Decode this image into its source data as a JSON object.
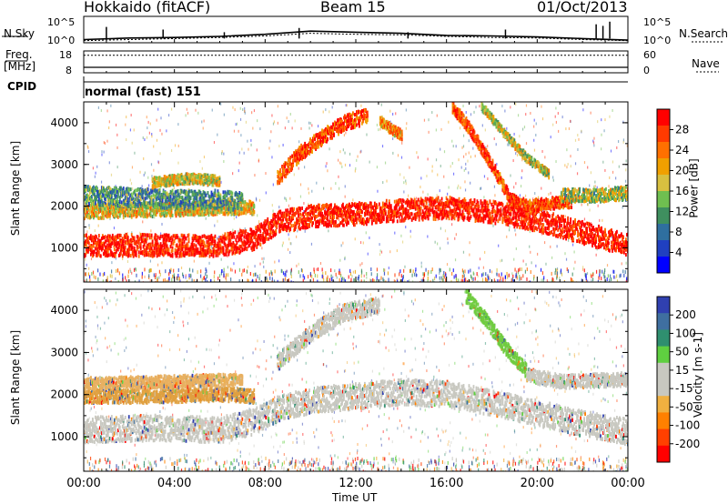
{
  "header": {
    "station": "Hokkaido (fitACF)",
    "beam": "Beam 15",
    "date": "01/Oct/2013"
  },
  "left_labels": {
    "nsky": "N.Sky",
    "freq": "Freq.",
    "freq_unit": "[MHz]",
    "cpid": "CPID"
  },
  "right_labels": {
    "nsearch": "N.Search",
    "nave": "Nave"
  },
  "cpid_text": "normal (fast) 151",
  "chart_data": [
    {
      "type": "line",
      "name": "noise-panel",
      "y_left_ticks": [
        "10^5",
        "10^0"
      ],
      "y_right_ticks": [
        "10^5",
        "10^0"
      ],
      "series_sky_log": [
        [
          0,
          0.6
        ],
        [
          2,
          0.9
        ],
        [
          4,
          1.0
        ],
        [
          6,
          1.2
        ],
        [
          8,
          1.6
        ],
        [
          10,
          2.2
        ],
        [
          12,
          2.0
        ],
        [
          14,
          1.8
        ],
        [
          16,
          1.4
        ],
        [
          18,
          1.3
        ],
        [
          20,
          1.1
        ],
        [
          22,
          0.8
        ],
        [
          24,
          0.5
        ]
      ],
      "series_search_log": [
        [
          0,
          0.4
        ],
        [
          2,
          0.6
        ],
        [
          4,
          0.8
        ],
        [
          6,
          1.0
        ],
        [
          8,
          1.3
        ],
        [
          10,
          1.8
        ],
        [
          12,
          1.6
        ],
        [
          14,
          1.5
        ],
        [
          16,
          1.2
        ],
        [
          18,
          1.0
        ],
        [
          20,
          0.9
        ],
        [
          22,
          0.6
        ],
        [
          24,
          0.4
        ]
      ]
    },
    {
      "type": "line",
      "name": "freq-nave-panel",
      "y_left_ticks": [
        "18",
        "8"
      ],
      "y_right_ticks": [
        "60",
        "0"
      ],
      "freq_mhz": 10.5,
      "nave": 48
    },
    {
      "type": "heatmap",
      "name": "power-panel",
      "ylabel": "Slant Range [km]",
      "yticks": [
        1000,
        2000,
        3000,
        4000
      ],
      "ylim": [
        180,
        4500
      ],
      "xlim": [
        0,
        24
      ],
      "colorbar": {
        "label": "Power [dB]",
        "ticks": [
          "28",
          "24",
          "20",
          "16",
          "12",
          "8",
          "4"
        ],
        "colors": [
          "#ff0000",
          "#ff3a00",
          "#ff7000",
          "#f0a000",
          "#d8c040",
          "#6fbf50",
          "#3f8f5f",
          "#2f6f9f",
          "#2040c0",
          "#0000ff"
        ]
      },
      "bands": [
        {
          "points": [
            [
              0,
              1100
            ],
            [
              3,
              1100
            ],
            [
              6,
              1100
            ],
            [
              7.5,
              1250
            ],
            [
              8.5,
              1650
            ],
            [
              10,
              1800
            ],
            [
              12,
              1850
            ],
            [
              14,
              1950
            ],
            [
              16,
              2000
            ],
            [
              18,
              1900
            ],
            [
              20,
              1700
            ],
            [
              22,
              1400
            ],
            [
              24,
              1100
            ]
          ],
          "width": 260,
          "level": 0.95
        },
        {
          "points": [
            [
              0,
              1900
            ],
            [
              3,
              1950
            ],
            [
              6,
              2000
            ],
            [
              7.5,
              2000
            ]
          ],
          "width": 160,
          "level": 0.6
        },
        {
          "points": [
            [
              0,
              2300
            ],
            [
              2,
              2250
            ],
            [
              4,
              2200
            ],
            [
              6,
              2200
            ],
            [
              7,
              2150
            ]
          ],
          "width": 220,
          "level": 0.35
        },
        {
          "points": [
            [
              8.5,
              2700
            ],
            [
              9.5,
              3300
            ],
            [
              10.5,
              3700
            ],
            [
              11.5,
              4050
            ],
            [
              12.5,
              4200
            ]
          ],
          "width": 180,
          "level": 0.85
        },
        {
          "points": [
            [
              13,
              4100
            ],
            [
              13.5,
              3900
            ],
            [
              14,
              3750
            ]
          ],
          "width": 120,
          "level": 0.7
        },
        {
          "points": [
            [
              16.2,
              4450
            ],
            [
              17,
              3900
            ],
            [
              18,
              3000
            ],
            [
              18.8,
              2200
            ],
            [
              19.5,
              2050
            ],
            [
              20.5,
              2100
            ],
            [
              21.5,
              2150
            ]
          ],
          "width": 140,
          "level": 0.85
        },
        {
          "points": [
            [
              17.5,
              4450
            ],
            [
              18.5,
              3800
            ],
            [
              19.5,
              3200
            ],
            [
              20.5,
              2800
            ]
          ],
          "width": 100,
          "level": 0.55
        },
        {
          "points": [
            [
              21,
              2300
            ],
            [
              22.5,
              2300
            ],
            [
              24,
              2350
            ]
          ],
          "width": 160,
          "level": 0.5
        },
        {
          "points": [
            [
              3,
              2600
            ],
            [
              4.5,
              2700
            ],
            [
              6,
              2650
            ]
          ],
          "width": 120,
          "level": 0.55
        }
      ]
    },
    {
      "type": "heatmap",
      "name": "velocity-panel",
      "ylabel": "Slant Range [km]",
      "yticks": [
        1000,
        2000,
        3000,
        4000
      ],
      "ylim": [
        180,
        4500
      ],
      "xlim": [
        0,
        24
      ],
      "xticks": [
        "00:00",
        "04:00",
        "08:00",
        "12:00",
        "16:00",
        "20:00",
        "00:00"
      ],
      "xlabel": "Time UT",
      "colorbar": {
        "label": "Velocity [m s-1]",
        "ticks": [
          "200",
          "100",
          "50",
          "15",
          "-15",
          "-50",
          "-100",
          "-200"
        ],
        "colors": [
          "#3040b0",
          "#3f6fa0",
          "#2f8f6f",
          "#5fcf40",
          "#c8c8c0",
          "#c8c8c0",
          "#f0b040",
          "#ff8000",
          "#ff4000",
          "#ff0000"
        ]
      },
      "bands": [
        {
          "points": [
            [
              0,
              1200
            ],
            [
              3,
              1250
            ],
            [
              6,
              1200
            ],
            [
              7.5,
              1400
            ],
            [
              8.5,
              1700
            ],
            [
              10,
              1900
            ],
            [
              12,
              2000
            ],
            [
              14,
              2100
            ],
            [
              16,
              2050
            ],
            [
              18,
              1850
            ],
            [
              20,
              1600
            ],
            [
              22,
              1350
            ],
            [
              24,
              1150
            ]
          ],
          "width": 300,
          "color": "#c8c8c0"
        },
        {
          "points": [
            [
              0,
              2000
            ],
            [
              3,
              2000
            ],
            [
              6,
              2050
            ],
            [
              7.5,
              2000
            ]
          ],
          "width": 160,
          "color": "#e0a040"
        },
        {
          "points": [
            [
              8.5,
              2800
            ],
            [
              10,
              3500
            ],
            [
              11.5,
              4000
            ],
            [
              13,
              4150
            ]
          ],
          "width": 200,
          "color": "#c8c8c0"
        },
        {
          "points": [
            [
              16.8,
              4400
            ],
            [
              17.6,
              3900
            ],
            [
              18.5,
              3200
            ],
            [
              19.5,
              2600
            ]
          ],
          "width": 160,
          "color": "#70cc40"
        },
        {
          "points": [
            [
              19.5,
              2500
            ],
            [
              21,
              2350
            ],
            [
              24,
              2400
            ]
          ],
          "width": 160,
          "color": "#c8c8c0"
        },
        {
          "points": [
            [
              0,
              2300
            ],
            [
              4,
              2350
            ],
            [
              7,
              2400
            ]
          ],
          "width": 140,
          "color": "#e8b060"
        }
      ]
    }
  ]
}
